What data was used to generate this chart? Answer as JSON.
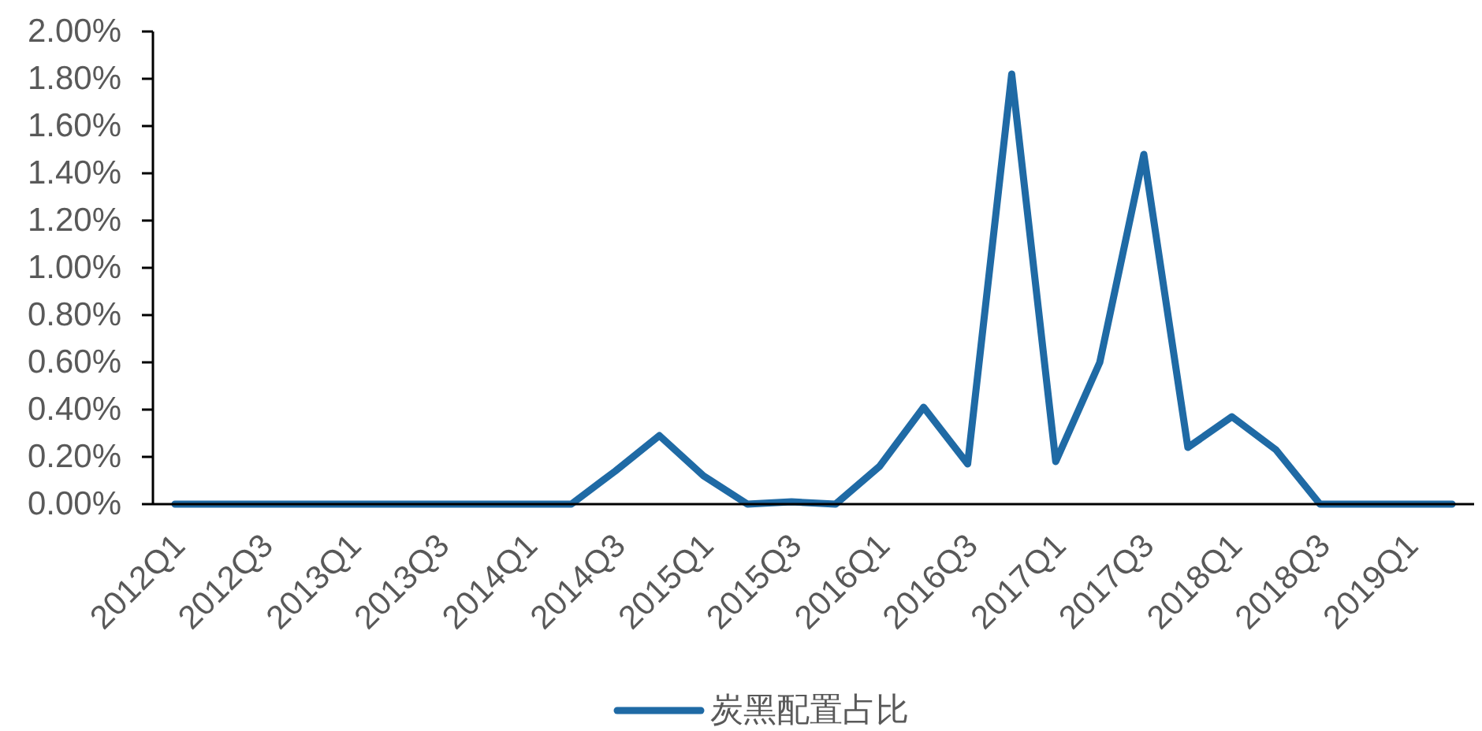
{
  "chart_data": {
    "type": "line",
    "categories": [
      "2012Q1",
      null,
      "2012Q3",
      null,
      "2013Q1",
      null,
      "2013Q3",
      null,
      "2014Q1",
      null,
      "2014Q3",
      null,
      "2015Q1",
      null,
      "2015Q3",
      null,
      "2016Q1",
      null,
      "2016Q3",
      null,
      "2017Q1",
      null,
      "2017Q3",
      null,
      "2018Q1",
      null,
      "2018Q3",
      null,
      "2019Q1",
      null
    ],
    "series": [
      {
        "name": "炭黑配置占比",
        "color": "#1f6aa5",
        "values": [
          0,
          0,
          0,
          0,
          0,
          0,
          0,
          0,
          0,
          0,
          0.14,
          0.29,
          0.12,
          0,
          0.01,
          0,
          0.16,
          0.41,
          0.17,
          1.82,
          0.18,
          0.6,
          1.48,
          0.24,
          0.37,
          0.23,
          0,
          0,
          0,
          0
        ]
      }
    ],
    "ylim": [
      0,
      2
    ],
    "yticks": [
      {
        "value": 0,
        "label": "0.00%"
      },
      {
        "value": 0.2,
        "label": "0.20%"
      },
      {
        "value": 0.4,
        "label": "0.40%"
      },
      {
        "value": 0.6,
        "label": "0.60%"
      },
      {
        "value": 0.8,
        "label": "0.80%"
      },
      {
        "value": 1.0,
        "label": "1.00%"
      },
      {
        "value": 1.2,
        "label": "1.20%"
      },
      {
        "value": 1.4,
        "label": "1.40%"
      },
      {
        "value": 1.6,
        "label": "1.60%"
      },
      {
        "value": 1.8,
        "label": "1.80%"
      },
      {
        "value": 2.0,
        "label": "2.00%"
      }
    ],
    "grid": false,
    "line_style": "solid",
    "legend": "bottom"
  }
}
